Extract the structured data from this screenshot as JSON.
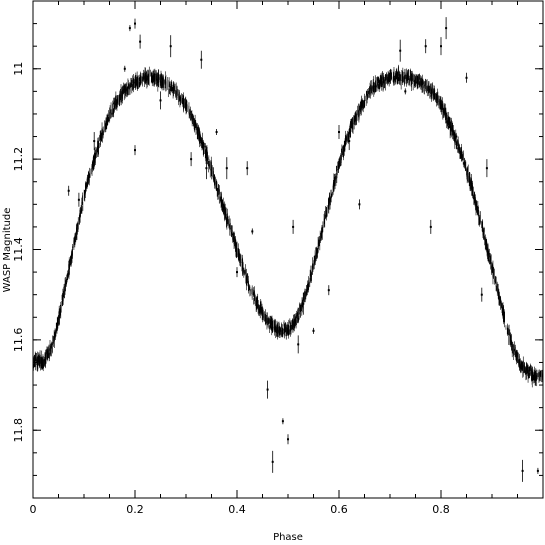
{
  "chart_data": {
    "type": "scatter",
    "title": "",
    "xlabel": "Phase",
    "ylabel": "WASP Magnitude",
    "xlim": [
      0,
      1
    ],
    "ylim": [
      11.95,
      10.85
    ],
    "y_inverted": true,
    "grid": false,
    "x_ticks": [
      "0",
      "0.2",
      "0.4",
      "0.6",
      "0.8"
    ],
    "y_ticks": [
      "11",
      "11.2",
      "11.4",
      "11.6",
      "11.8"
    ],
    "marker": "point with vertical error bar",
    "light_curve": {
      "x": [
        0.0,
        0.02,
        0.04,
        0.06,
        0.08,
        0.1,
        0.12,
        0.14,
        0.16,
        0.18,
        0.2,
        0.22,
        0.24,
        0.26,
        0.28,
        0.3,
        0.32,
        0.34,
        0.36,
        0.38,
        0.4,
        0.42,
        0.44,
        0.46,
        0.48,
        0.5,
        0.52,
        0.54,
        0.56,
        0.58,
        0.6,
        0.62,
        0.64,
        0.66,
        0.68,
        0.7,
        0.72,
        0.74,
        0.76,
        0.78,
        0.8,
        0.82,
        0.84,
        0.86,
        0.88,
        0.9,
        0.92,
        0.94,
        0.96,
        0.98,
        1.0
      ],
      "y": [
        11.65,
        11.65,
        11.61,
        11.5,
        11.39,
        11.28,
        11.2,
        11.13,
        11.08,
        11.05,
        11.03,
        11.02,
        11.02,
        11.03,
        11.05,
        11.08,
        11.13,
        11.19,
        11.26,
        11.33,
        11.4,
        11.47,
        11.52,
        11.56,
        11.58,
        11.58,
        11.55,
        11.48,
        11.39,
        11.3,
        11.21,
        11.14,
        11.09,
        11.05,
        11.03,
        11.02,
        11.02,
        11.02,
        11.03,
        11.05,
        11.08,
        11.13,
        11.19,
        11.26,
        11.35,
        11.44,
        11.53,
        11.62,
        11.66,
        11.68,
        11.68
      ]
    },
    "outliers": {
      "x": [
        0.19,
        0.2,
        0.21,
        0.25,
        0.27,
        0.18,
        0.2,
        0.31,
        0.33,
        0.34,
        0.36,
        0.4,
        0.42,
        0.46,
        0.47,
        0.49,
        0.5,
        0.51,
        0.52,
        0.53,
        0.55,
        0.58,
        0.6,
        0.62,
        0.72,
        0.73,
        0.75,
        0.77,
        0.8,
        0.81,
        0.83,
        0.85,
        0.88,
        0.89,
        0.96,
        0.99,
        0.07,
        0.09,
        0.12,
        0.38,
        0.43,
        0.64,
        0.78
      ],
      "y": [
        10.91,
        10.9,
        10.94,
        11.07,
        10.95,
        11.0,
        11.18,
        11.2,
        10.98,
        11.22,
        11.14,
        11.45,
        11.22,
        11.71,
        11.87,
        11.78,
        11.82,
        11.35,
        11.61,
        11.52,
        11.58,
        11.49,
        11.14,
        11.16,
        10.96,
        11.05,
        11.03,
        10.95,
        10.95,
        10.91,
        11.15,
        11.02,
        11.5,
        11.22,
        11.89,
        11.89,
        11.27,
        11.29,
        11.16,
        11.22,
        11.36,
        11.3,
        11.35
      ]
    }
  }
}
